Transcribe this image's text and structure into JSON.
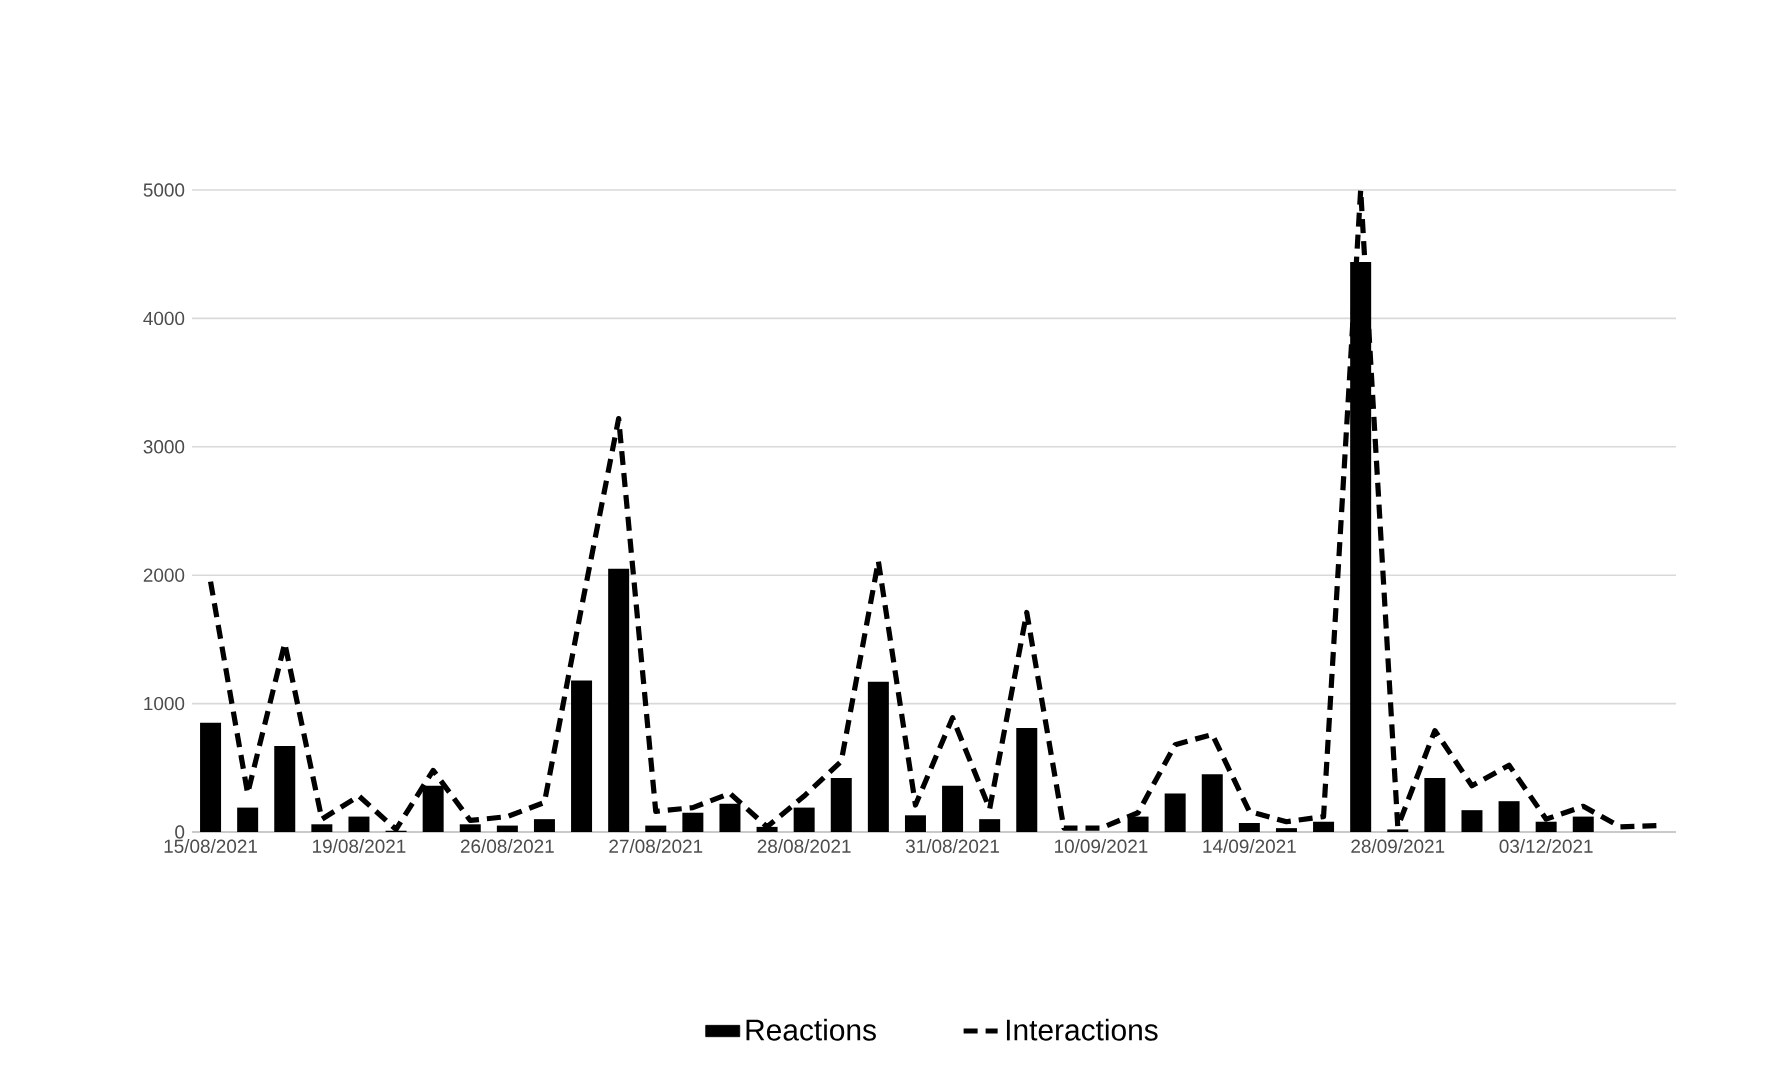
{
  "chart_data": {
    "type": "bar",
    "categories": [
      "15/08/2021",
      null,
      null,
      null,
      "19/08/2021",
      null,
      null,
      null,
      "26/08/2021",
      null,
      null,
      null,
      "27/08/2021",
      null,
      null,
      null,
      "28/08/2021",
      null,
      null,
      null,
      "31/08/2021",
      null,
      null,
      null,
      "10/09/2021",
      null,
      null,
      null,
      "14/09/2021",
      null,
      null,
      null,
      "28/09/2021",
      null,
      null,
      null,
      "03/12/2021",
      null,
      null,
      null
    ],
    "series": [
      {
        "name": "Reactions",
        "type": "bar",
        "color": "#000000",
        "values": [
          850,
          190,
          670,
          60,
          120,
          10,
          360,
          60,
          50,
          100,
          1180,
          2050,
          50,
          150,
          220,
          40,
          190,
          420,
          1170,
          130,
          360,
          100,
          810,
          0,
          0,
          120,
          300,
          450,
          70,
          30,
          80,
          4440,
          20,
          420,
          170,
          240,
          80,
          120,
          0,
          0
        ]
      },
      {
        "name": "Interactions",
        "type": "line",
        "color": "#000000",
        "line_style": "dashed",
        "values": [
          1950,
          300,
          1470,
          100,
          280,
          20,
          480,
          90,
          120,
          230,
          1750,
          3220,
          160,
          190,
          300,
          40,
          280,
          550,
          2110,
          210,
          890,
          180,
          1710,
          30,
          30,
          150,
          680,
          760,
          160,
          80,
          120,
          5000,
          40,
          790,
          360,
          520,
          100,
          200,
          40,
          50
        ]
      }
    ],
    "ylim": [
      0,
      5000
    ],
    "yticks": [
      0,
      1000,
      2000,
      3000,
      4000,
      5000
    ],
    "grid": "y",
    "legend": "bottom",
    "marker": "none"
  }
}
